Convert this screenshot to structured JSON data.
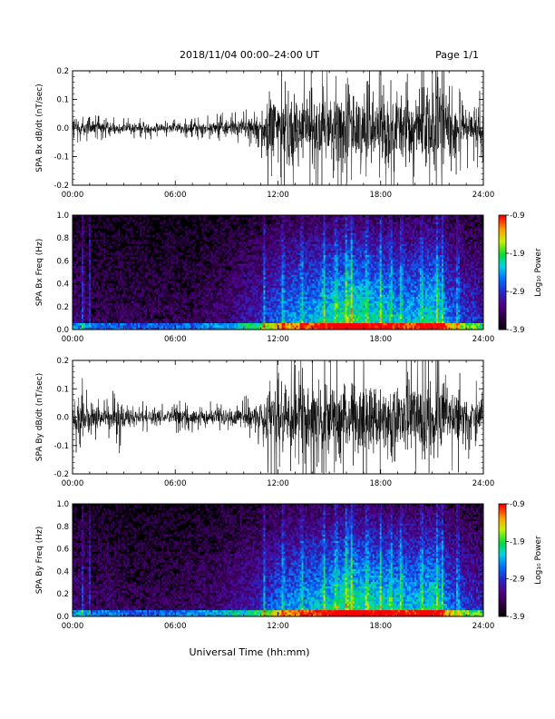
{
  "header": {
    "title": "2018/11/04  00:00–24:00 UT",
    "page": "Page 1/1"
  },
  "xlabel": "Universal Time (hh:mm)",
  "chart_data": [
    {
      "type": "line",
      "ylabel": "SPA Bx dB/dt (nT/sec)",
      "xlim": [
        0,
        24
      ],
      "ylim": [
        -0.2,
        0.2
      ],
      "xticks": [
        "00:00",
        "06:00",
        "12:00",
        "18:00",
        "24:00"
      ],
      "yticks": [
        "-0.2",
        "-0.1",
        "0.0",
        "0.1",
        "0.2"
      ],
      "envelope": {
        "hours": [
          0,
          0.5,
          1,
          2,
          3,
          4,
          5,
          6,
          7,
          8,
          9,
          10,
          11,
          11.5,
          12,
          13,
          14,
          15,
          16,
          17,
          18,
          19,
          20,
          21,
          21.5,
          22,
          23,
          24
        ],
        "amplitude": [
          0.06,
          0.04,
          0.03,
          0.025,
          0.025,
          0.025,
          0.025,
          0.025,
          0.03,
          0.03,
          0.035,
          0.04,
          0.06,
          0.15,
          0.17,
          0.15,
          0.16,
          0.16,
          0.17,
          0.16,
          0.15,
          0.15,
          0.17,
          0.22,
          0.22,
          0.14,
          0.1,
          0.08
        ]
      },
      "color": "#000000"
    },
    {
      "type": "heatmap",
      "ylabel": "SPA Bx Freq (Hz)",
      "xlim": [
        0,
        24
      ],
      "ylim": [
        0,
        1.0
      ],
      "xticks": [
        "00:00",
        "06:00",
        "12:00",
        "18:00",
        "24:00"
      ],
      "yticks": [
        "0.0",
        "0.2",
        "0.4",
        "0.6",
        "0.8",
        "1.0"
      ],
      "colorbar": {
        "label": "Log₁₀ Power",
        "range": [
          -3.9,
          -0.9
        ],
        "ticks": [
          "-0.9",
          "-1.9",
          "-2.9",
          "-3.9"
        ]
      },
      "activity": {
        "hours": [
          0,
          1,
          2,
          3,
          4,
          5,
          6,
          7,
          8,
          9,
          10,
          11,
          12,
          13,
          14,
          15,
          16,
          17,
          18,
          19,
          20,
          21,
          22,
          23,
          24
        ],
        "level": [
          0.25,
          0.15,
          0.15,
          0.15,
          0.15,
          0.15,
          0.15,
          0.15,
          0.2,
          0.2,
          0.3,
          0.35,
          0.5,
          0.55,
          0.6,
          0.65,
          0.75,
          0.7,
          0.65,
          0.6,
          0.6,
          0.7,
          0.5,
          0.4,
          0.35
        ]
      }
    },
    {
      "type": "line",
      "ylabel": "SPA By dB/dt (nT/sec)",
      "xlim": [
        0,
        24
      ],
      "ylim": [
        -0.2,
        0.2
      ],
      "xticks": [
        "00:00",
        "06:00",
        "12:00",
        "18:00",
        "24:00"
      ],
      "yticks": [
        "-0.2",
        "-0.1",
        "0.0",
        "0.1",
        "0.2"
      ],
      "envelope": {
        "hours": [
          0,
          0.5,
          1,
          2,
          2.7,
          3,
          4,
          5,
          6,
          7,
          8,
          9,
          10,
          11,
          11.5,
          12,
          13,
          14,
          15,
          16,
          17,
          18,
          19,
          20,
          21,
          21.5,
          22,
          23,
          24
        ],
        "amplitude": [
          0.08,
          0.1,
          0.06,
          0.04,
          0.09,
          0.04,
          0.035,
          0.035,
          0.035,
          0.04,
          0.04,
          0.04,
          0.05,
          0.07,
          0.16,
          0.17,
          0.15,
          0.16,
          0.17,
          0.17,
          0.16,
          0.15,
          0.15,
          0.16,
          0.2,
          0.2,
          0.15,
          0.1,
          0.07
        ]
      },
      "color": "#000000"
    },
    {
      "type": "heatmap",
      "ylabel": "SPA By Freq (Hz)",
      "xlim": [
        0,
        24
      ],
      "ylim": [
        0,
        1.0
      ],
      "xticks": [
        "00:00",
        "06:00",
        "12:00",
        "18:00",
        "24:00"
      ],
      "yticks": [
        "0.0",
        "0.2",
        "0.4",
        "0.6",
        "0.8",
        "1.0"
      ],
      "colorbar": {
        "label": "Log₁₀ Power",
        "range": [
          -3.9,
          -0.9
        ],
        "ticks": [
          "-0.9",
          "-1.9",
          "-2.9",
          "-3.9"
        ]
      },
      "activity": {
        "hours": [
          0,
          1,
          2,
          3,
          4,
          5,
          6,
          7,
          8,
          9,
          10,
          11,
          12,
          13,
          14,
          15,
          16,
          17,
          18,
          19,
          20,
          21,
          22,
          23,
          24
        ],
        "level": [
          0.25,
          0.15,
          0.2,
          0.15,
          0.15,
          0.15,
          0.15,
          0.2,
          0.2,
          0.25,
          0.3,
          0.35,
          0.5,
          0.55,
          0.6,
          0.65,
          0.75,
          0.7,
          0.65,
          0.65,
          0.6,
          0.7,
          0.5,
          0.4,
          0.35
        ]
      }
    }
  ]
}
